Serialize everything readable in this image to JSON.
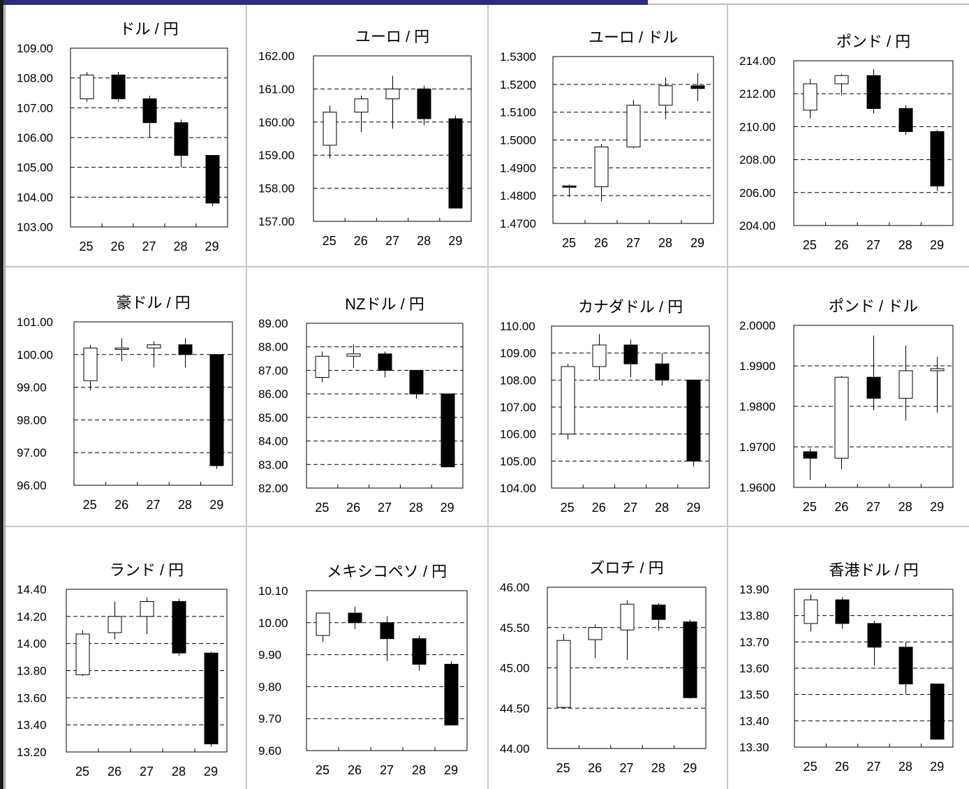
{
  "chart_data": [
    {
      "type": "candlestick",
      "title": "ドル / 円",
      "categories": [
        "25",
        "26",
        "27",
        "28",
        "29"
      ],
      "yticks": [
        "109.00",
        "108.00",
        "107.00",
        "106.00",
        "105.00",
        "104.00",
        "103.00"
      ],
      "ylim": [
        103,
        109
      ],
      "candles": [
        {
          "open": 107.3,
          "high": 108.2,
          "low": 107.2,
          "close": 108.1
        },
        {
          "open": 108.1,
          "high": 108.2,
          "low": 107.2,
          "close": 107.3
        },
        {
          "open": 107.3,
          "high": 107.4,
          "low": 106.0,
          "close": 106.5
        },
        {
          "open": 106.5,
          "high": 106.6,
          "low": 105.0,
          "close": 105.4
        },
        {
          "open": 105.4,
          "high": 105.4,
          "low": 103.7,
          "close": 103.8
        }
      ]
    },
    {
      "type": "candlestick",
      "title": "ユーロ / 円",
      "categories": [
        "25",
        "26",
        "27",
        "28",
        "29"
      ],
      "yticks": [
        "162.00",
        "161.00",
        "160.00",
        "159.00",
        "158.00",
        "157.00"
      ],
      "ylim": [
        157,
        162
      ],
      "candles": [
        {
          "open": 159.3,
          "high": 160.5,
          "low": 158.9,
          "close": 160.3
        },
        {
          "open": 160.3,
          "high": 160.8,
          "low": 159.7,
          "close": 160.7
        },
        {
          "open": 160.7,
          "high": 161.4,
          "low": 159.8,
          "close": 161.0
        },
        {
          "open": 161.0,
          "high": 161.1,
          "low": 159.9,
          "close": 160.1
        },
        {
          "open": 160.1,
          "high": 160.2,
          "low": 157.4,
          "close": 157.4
        }
      ]
    },
    {
      "type": "candlestick",
      "title": "ユーロ / ドル",
      "categories": [
        "25",
        "26",
        "27",
        "28",
        "29"
      ],
      "yticks": [
        "1.5300",
        "1.5200",
        "1.5100",
        "1.5000",
        "1.4900",
        "1.4800",
        "1.4700"
      ],
      "ylim": [
        1.47,
        1.53
      ],
      "candles": [
        {
          "open": 1.4835,
          "high": 1.484,
          "low": 1.4795,
          "close": 1.4832
        },
        {
          "open": 1.4832,
          "high": 1.4985,
          "low": 1.478,
          "close": 1.4975
        },
        {
          "open": 1.4975,
          "high": 1.5145,
          "low": 1.497,
          "close": 1.5125
        },
        {
          "open": 1.5125,
          "high": 1.5225,
          "low": 1.5075,
          "close": 1.5195
        },
        {
          "open": 1.5195,
          "high": 1.524,
          "low": 1.514,
          "close": 1.5185
        }
      ]
    },
    {
      "type": "candlestick",
      "title": "ポンド / 円",
      "categories": [
        "25",
        "26",
        "27",
        "28",
        "29"
      ],
      "yticks": [
        "214.00",
        "212.00",
        "210.00",
        "208.00",
        "206.00",
        "204.00"
      ],
      "ylim": [
        204,
        214
      ],
      "candles": [
        {
          "open": 211.0,
          "high": 212.9,
          "low": 210.5,
          "close": 212.6
        },
        {
          "open": 212.6,
          "high": 213.2,
          "low": 211.9,
          "close": 213.1
        },
        {
          "open": 213.1,
          "high": 213.5,
          "low": 210.8,
          "close": 211.1
        },
        {
          "open": 211.1,
          "high": 211.3,
          "low": 209.5,
          "close": 209.7
        },
        {
          "open": 209.7,
          "high": 209.8,
          "low": 206.1,
          "close": 206.4
        }
      ]
    },
    {
      "type": "candlestick",
      "title": "豪ドル / 円",
      "categories": [
        "25",
        "26",
        "27",
        "28",
        "29"
      ],
      "yticks": [
        "101.00",
        "100.00",
        "99.00",
        "98.00",
        "97.00",
        "96.00"
      ],
      "ylim": [
        96,
        101
      ],
      "candles": [
        {
          "open": 99.2,
          "high": 100.3,
          "low": 98.9,
          "close": 100.2
        },
        {
          "open": 100.2,
          "high": 100.5,
          "low": 99.8,
          "close": 100.2
        },
        {
          "open": 100.2,
          "high": 100.4,
          "low": 99.6,
          "close": 100.3
        },
        {
          "open": 100.3,
          "high": 100.5,
          "low": 99.6,
          "close": 100.0
        },
        {
          "open": 100.0,
          "high": 100.0,
          "low": 96.5,
          "close": 96.6
        }
      ]
    },
    {
      "type": "candlestick",
      "title": "NZドル / 円",
      "categories": [
        "25",
        "26",
        "27",
        "28",
        "29"
      ],
      "yticks": [
        "89.00",
        "88.00",
        "87.00",
        "86.00",
        "85.00",
        "84.00",
        "83.00",
        "82.00"
      ],
      "ylim": [
        82,
        89
      ],
      "candles": [
        {
          "open": 86.7,
          "high": 87.8,
          "low": 86.5,
          "close": 87.6
        },
        {
          "open": 87.6,
          "high": 88.1,
          "low": 87.1,
          "close": 87.7
        },
        {
          "open": 87.7,
          "high": 87.8,
          "low": 86.7,
          "close": 87.0
        },
        {
          "open": 87.0,
          "high": 87.0,
          "low": 85.8,
          "close": 86.0
        },
        {
          "open": 86.0,
          "high": 86.0,
          "low": 82.9,
          "close": 82.9
        }
      ]
    },
    {
      "type": "candlestick",
      "title": "カナダドル / 円",
      "categories": [
        "25",
        "26",
        "27",
        "28",
        "29"
      ],
      "yticks": [
        "110.00",
        "109.00",
        "108.00",
        "107.00",
        "106.00",
        "105.00",
        "104.00"
      ],
      "ylim": [
        104,
        110
      ],
      "candles": [
        {
          "open": 106.0,
          "high": 108.6,
          "low": 105.8,
          "close": 108.5
        },
        {
          "open": 108.5,
          "high": 109.7,
          "low": 108.0,
          "close": 109.3
        },
        {
          "open": 109.3,
          "high": 109.5,
          "low": 108.1,
          "close": 108.6
        },
        {
          "open": 108.6,
          "high": 109.0,
          "low": 107.8,
          "close": 108.0
        },
        {
          "open": 108.0,
          "high": 108.0,
          "low": 104.8,
          "close": 105.0
        }
      ]
    },
    {
      "type": "candlestick",
      "title": "ポンド / ドル",
      "categories": [
        "25",
        "26",
        "27",
        "28",
        "29"
      ],
      "yticks": [
        "2.0000",
        "1.9900",
        "1.9800",
        "1.9700",
        "1.9600"
      ],
      "ylim": [
        1.96,
        2.0
      ],
      "candles": [
        {
          "open": 1.9688,
          "high": 1.9695,
          "low": 1.9618,
          "close": 1.9672
        },
        {
          "open": 1.9672,
          "high": 1.9875,
          "low": 1.9645,
          "close": 1.9872
        },
        {
          "open": 1.9872,
          "high": 1.9975,
          "low": 1.979,
          "close": 1.982
        },
        {
          "open": 1.982,
          "high": 1.995,
          "low": 1.9765,
          "close": 1.9888
        },
        {
          "open": 1.9888,
          "high": 1.9922,
          "low": 1.9785,
          "close": 1.9893
        }
      ]
    },
    {
      "type": "candlestick",
      "title": "ランド / 円",
      "categories": [
        "25",
        "26",
        "27",
        "28",
        "29"
      ],
      "yticks": [
        "14.40",
        "14.20",
        "14.00",
        "13.80",
        "13.60",
        "13.40",
        "13.20"
      ],
      "ylim": [
        13.2,
        14.4
      ],
      "candles": [
        {
          "open": 13.77,
          "high": 14.1,
          "low": 13.76,
          "close": 14.07
        },
        {
          "open": 14.08,
          "high": 14.31,
          "low": 14.03,
          "close": 14.2
        },
        {
          "open": 14.2,
          "high": 14.34,
          "low": 14.07,
          "close": 14.31
        },
        {
          "open": 14.31,
          "high": 14.33,
          "low": 13.91,
          "close": 13.93
        },
        {
          "open": 13.93,
          "high": 13.94,
          "low": 13.24,
          "close": 13.26
        }
      ]
    },
    {
      "type": "candlestick",
      "title": "メキシコペソ / 円",
      "categories": [
        "25",
        "26",
        "27",
        "28",
        "29"
      ],
      "yticks": [
        "10.10",
        "10.00",
        "9.90",
        "9.80",
        "9.70",
        "9.60"
      ],
      "ylim": [
        9.6,
        10.1
      ],
      "candles": [
        {
          "open": 9.96,
          "high": 10.03,
          "low": 9.94,
          "close": 10.03
        },
        {
          "open": 10.03,
          "high": 10.05,
          "low": 9.98,
          "close": 10.0
        },
        {
          "open": 10.0,
          "high": 10.02,
          "low": 9.88,
          "close": 9.95
        },
        {
          "open": 9.95,
          "high": 9.96,
          "low": 9.85,
          "close": 9.87
        },
        {
          "open": 9.87,
          "high": 9.88,
          "low": 9.68,
          "close": 9.68
        }
      ]
    },
    {
      "type": "candlestick",
      "title": "ズロチ / 円",
      "categories": [
        "25",
        "26",
        "27",
        "28",
        "29"
      ],
      "yticks": [
        "46.00",
        "45.50",
        "45.00",
        "44.50",
        "44.00"
      ],
      "ylim": [
        44,
        46
      ],
      "candles": [
        {
          "open": 44.51,
          "high": 45.42,
          "low": 44.5,
          "close": 45.34
        },
        {
          "open": 45.35,
          "high": 45.54,
          "low": 45.12,
          "close": 45.5
        },
        {
          "open": 45.47,
          "high": 45.84,
          "low": 45.1,
          "close": 45.79
        },
        {
          "open": 45.78,
          "high": 45.8,
          "low": 45.46,
          "close": 45.6
        },
        {
          "open": 45.57,
          "high": 45.6,
          "low": 44.62,
          "close": 44.63
        }
      ]
    },
    {
      "type": "candlestick",
      "title": "香港ドル / 円",
      "categories": [
        "25",
        "26",
        "27",
        "28",
        "29"
      ],
      "yticks": [
        "13.90",
        "13.80",
        "13.70",
        "13.60",
        "13.50",
        "13.40",
        "13.30"
      ],
      "ylim": [
        13.3,
        13.9
      ],
      "candles": [
        {
          "open": 13.77,
          "high": 13.88,
          "low": 13.74,
          "close": 13.86
        },
        {
          "open": 13.86,
          "high": 13.87,
          "low": 13.75,
          "close": 13.77
        },
        {
          "open": 13.77,
          "high": 13.78,
          "low": 13.61,
          "close": 13.68
        },
        {
          "open": 13.68,
          "high": 13.7,
          "low": 13.5,
          "close": 13.54
        },
        {
          "open": 13.54,
          "high": 13.54,
          "low": 13.33,
          "close": 13.33
        }
      ]
    }
  ]
}
